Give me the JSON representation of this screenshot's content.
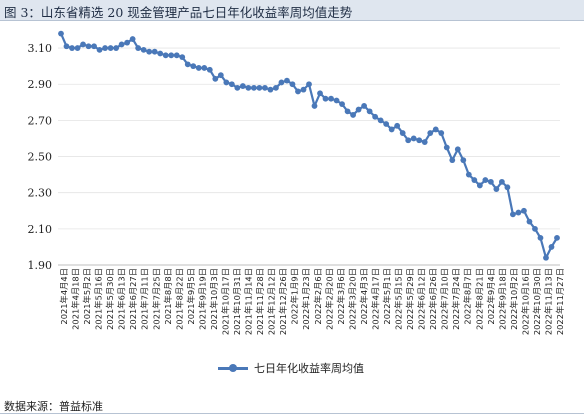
{
  "title": "图 3：山东省精选 20 现金管理产品七日年化收益率周均值走势",
  "source": "数据来源：普益标准",
  "chart_data": {
    "type": "line",
    "y_ticks": [
      "1.90",
      "2.10",
      "2.30",
      "2.50",
      "2.70",
      "2.90",
      "3.10"
    ],
    "ylim": [
      1.9,
      3.2
    ],
    "x_labels": [
      "2021年4月4日",
      "2021年4月18日",
      "2021年5月2日",
      "2021年5月16日",
      "2021年5月30日",
      "2021年6月13日",
      "2021年6月27日",
      "2021年7月11日",
      "2021年7月25日",
      "2021年8月8日",
      "2021年8月22日",
      "2021年9月5日",
      "2021年9月19日",
      "2021年10月3日",
      "2021年10月17日",
      "2021年10月31日",
      "2021年11月14日",
      "2021年11月28日",
      "2021年12月12日",
      "2021年12月26日",
      "2022年1月9日",
      "2022年1月23日",
      "2022年2月6日",
      "2022年2月20日",
      "2022年3月6日",
      "2022年3月20日",
      "2022年4月3日",
      "2022年4月17日",
      "2022年5月1日",
      "2022年5月15日",
      "2022年5月29日",
      "2022年6月12日",
      "2022年6月26日",
      "2022年7月10日",
      "2022年7月24日",
      "2022年8月7日",
      "2022年8月21日",
      "2022年9月4日",
      "2022年9月18日",
      "2022年10月2日",
      "2022年10月16日",
      "2022年10月30日",
      "2022年11月13日",
      "2022年11月27日"
    ],
    "legend": "七日年化收益率周均值",
    "color": "#4a78b8",
    "series": [
      {
        "values": [
          3.18,
          3.11,
          3.1,
          3.1,
          3.12,
          3.11,
          3.11,
          3.09,
          3.1,
          3.1,
          3.1,
          3.12,
          3.13,
          3.15,
          3.1,
          3.09,
          3.08,
          3.08,
          3.07,
          3.06,
          3.06,
          3.06,
          3.05,
          3.01,
          3.0,
          2.99,
          2.99,
          2.98,
          2.93,
          2.95,
          2.91,
          2.9,
          2.88,
          2.89,
          2.88,
          2.88,
          2.88,
          2.88,
          2.87,
          2.88,
          2.91,
          2.92,
          2.9,
          2.86,
          2.87,
          2.9,
          2.78,
          2.85,
          2.82,
          2.82,
          2.81,
          2.79,
          2.75,
          2.73,
          2.76,
          2.78,
          2.75,
          2.72,
          2.7,
          2.68,
          2.65,
          2.67,
          2.63,
          2.59,
          2.6,
          2.59,
          2.58,
          2.63,
          2.65,
          2.63,
          2.55,
          2.48,
          2.54,
          2.48,
          2.4,
          2.37,
          2.34,
          2.37,
          2.36,
          2.32,
          2.36,
          2.33,
          2.18,
          2.19,
          2.2,
          2.14,
          2.1,
          2.05,
          1.94,
          2.0,
          2.05
        ]
      }
    ]
  }
}
